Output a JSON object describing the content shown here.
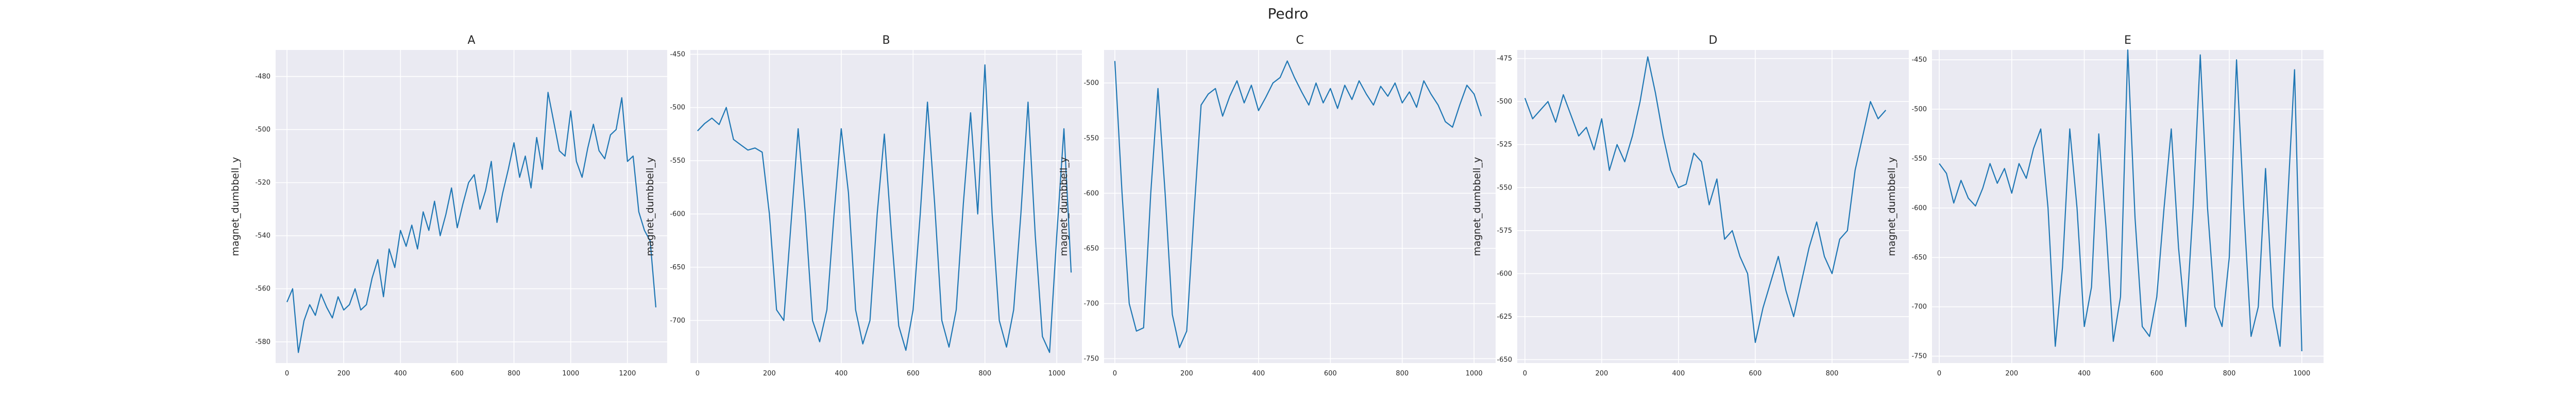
{
  "figure": {
    "title": "Pedro"
  },
  "style": {
    "axes_bg": "#eaeaf2",
    "grid_color": "#ffffff",
    "line_color": "#1f77b4"
  },
  "chart_data": [
    {
      "type": "line",
      "title": "A",
      "xlabel": "",
      "ylabel": "magnet_dumbbell_y",
      "xlim": [
        -40,
        1340
      ],
      "ylim": [
        -588,
        -470
      ],
      "xticks": [
        0,
        200,
        400,
        600,
        800,
        1000,
        1200
      ],
      "yticks": [
        -480,
        -500,
        -520,
        -540,
        -560,
        -580
      ],
      "grid": true,
      "x": [
        0,
        20,
        40,
        60,
        80,
        100,
        120,
        140,
        160,
        180,
        200,
        220,
        240,
        260,
        280,
        300,
        320,
        340,
        360,
        380,
        400,
        420,
        440,
        460,
        480,
        500,
        520,
        540,
        560,
        580,
        600,
        620,
        640,
        660,
        680,
        700,
        720,
        740,
        760,
        780,
        800,
        820,
        840,
        860,
        880,
        900,
        920,
        940,
        960,
        980,
        1000,
        1020,
        1040,
        1060,
        1080,
        1100,
        1120,
        1140,
        1160,
        1180,
        1200,
        1220,
        1240,
        1260,
        1280,
        1300
      ],
      "y": [
        -565,
        -560,
        -584,
        -572,
        -566,
        -570,
        -562,
        -567,
        -571,
        -563,
        -568,
        -566,
        -560,
        -568,
        -566,
        -556,
        -549,
        -563,
        -545,
        -552,
        -538,
        -544,
        -536,
        -545,
        -531,
        -538,
        -527,
        -540,
        -532,
        -522,
        -537,
        -528,
        -520,
        -517,
        -530,
        -523,
        -512,
        -535,
        -524,
        -515,
        -505,
        -518,
        -510,
        -522,
        -503,
        -515,
        -486,
        -497,
        -508,
        -510,
        -493,
        -512,
        -518,
        -507,
        -498,
        -508,
        -511,
        -502,
        -500,
        -488,
        -512,
        -510,
        -531,
        -538,
        -542,
        -567
      ]
    },
    {
      "type": "line",
      "title": "B",
      "xlabel": "",
      "ylabel": "magnet_dumbbell_y",
      "xlim": [
        -20,
        1070
      ],
      "ylim": [
        -740,
        -446
      ],
      "xticks": [
        0,
        200,
        400,
        600,
        800,
        1000
      ],
      "yticks": [
        -450,
        -500,
        -550,
        -600,
        -650,
        -700
      ],
      "grid": true,
      "x": [
        0,
        20,
        40,
        60,
        80,
        100,
        120,
        140,
        160,
        180,
        200,
        220,
        240,
        260,
        280,
        300,
        320,
        340,
        360,
        380,
        400,
        420,
        440,
        460,
        480,
        500,
        520,
        540,
        560,
        580,
        600,
        620,
        640,
        660,
        680,
        700,
        720,
        740,
        760,
        780,
        800,
        820,
        840,
        860,
        880,
        900,
        920,
        940,
        960,
        980,
        1000,
        1020,
        1040
      ],
      "y": [
        -522,
        -515,
        -510,
        -516,
        -500,
        -530,
        -535,
        -540,
        -538,
        -542,
        -600,
        -690,
        -700,
        -610,
        -520,
        -600,
        -700,
        -720,
        -690,
        -600,
        -520,
        -580,
        -690,
        -722,
        -700,
        -600,
        -525,
        -620,
        -705,
        -728,
        -690,
        -600,
        -495,
        -590,
        -700,
        -725,
        -690,
        -590,
        -505,
        -600,
        -460,
        -600,
        -700,
        -725,
        -690,
        -600,
        -495,
        -620,
        -715,
        -730,
        -620,
        -520,
        -655
      ]
    },
    {
      "type": "line",
      "title": "C",
      "xlabel": "",
      "ylabel": "magnet_dumbbell_y",
      "xlim": [
        -30,
        1060
      ],
      "ylim": [
        -754,
        -470
      ],
      "xticks": [
        0,
        200,
        400,
        600,
        800,
        1000
      ],
      "yticks": [
        -500,
        -550,
        -600,
        -650,
        -700,
        -750
      ],
      "grid": true,
      "x": [
        0,
        20,
        40,
        60,
        80,
        100,
        120,
        140,
        160,
        180,
        200,
        220,
        240,
        260,
        280,
        300,
        320,
        340,
        360,
        380,
        400,
        420,
        440,
        460,
        480,
        500,
        520,
        540,
        560,
        580,
        600,
        620,
        640,
        660,
        680,
        700,
        720,
        740,
        760,
        780,
        800,
        820,
        840,
        860,
        880,
        900,
        920,
        940,
        960,
        980,
        1000,
        1020
      ],
      "y": [
        -480,
        -600,
        -700,
        -725,
        -722,
        -600,
        -505,
        -600,
        -710,
        -740,
        -725,
        -620,
        -520,
        -510,
        -505,
        -530,
        -512,
        -498,
        -518,
        -502,
        -525,
        -513,
        -500,
        -495,
        -480,
        -495,
        -508,
        -520,
        -500,
        -518,
        -505,
        -523,
        -502,
        -515,
        -498,
        -510,
        -520,
        -503,
        -512,
        -500,
        -518,
        -508,
        -522,
        -498,
        -510,
        -520,
        -535,
        -540,
        -520,
        -502,
        -510,
        -530
      ]
    },
    {
      "type": "line",
      "title": "D",
      "xlabel": "",
      "ylabel": "magnet_dumbbell_y",
      "xlim": [
        -20,
        1000
      ],
      "ylim": [
        -652,
        -470
      ],
      "xticks": [
        0,
        200,
        400,
        600,
        800
      ],
      "yticks": [
        -475,
        -500,
        -525,
        -550,
        -575,
        -600,
        -625,
        -650
      ],
      "grid": true,
      "x": [
        0,
        20,
        40,
        60,
        80,
        100,
        120,
        140,
        160,
        180,
        200,
        220,
        240,
        260,
        280,
        300,
        320,
        340,
        360,
        380,
        400,
        420,
        440,
        460,
        480,
        500,
        520,
        540,
        560,
        580,
        600,
        620,
        640,
        660,
        680,
        700,
        720,
        740,
        760,
        780,
        800,
        820,
        840,
        860,
        880,
        900,
        920,
        940
      ],
      "y": [
        -498,
        -510,
        -505,
        -500,
        -512,
        -496,
        -508,
        -520,
        -515,
        -528,
        -510,
        -540,
        -525,
        -535,
        -520,
        -500,
        -474,
        -495,
        -520,
        -540,
        -550,
        -548,
        -530,
        -535,
        -560,
        -545,
        -580,
        -575,
        -590,
        -600,
        -640,
        -620,
        -605,
        -590,
        -610,
        -625,
        -605,
        -585,
        -570,
        -590,
        -600,
        -580,
        -575,
        -540,
        -520,
        -500,
        -510,
        -505
      ]
    },
    {
      "type": "line",
      "title": "E",
      "xlabel": "",
      "ylabel": "magnet_dumbbell_y",
      "xlim": [
        -20,
        1060
      ],
      "ylim": [
        -757,
        -440
      ],
      "xticks": [
        0,
        200,
        400,
        600,
        800,
        1000
      ],
      "yticks": [
        -450,
        -500,
        -550,
        -600,
        -650,
        -700,
        -750
      ],
      "grid": true,
      "x": [
        0,
        20,
        40,
        60,
        80,
        100,
        120,
        140,
        160,
        180,
        200,
        220,
        240,
        260,
        280,
        300,
        320,
        340,
        360,
        380,
        400,
        420,
        440,
        460,
        480,
        500,
        520,
        540,
        560,
        580,
        600,
        620,
        640,
        660,
        680,
        700,
        720,
        740,
        760,
        780,
        800,
        820,
        840,
        860,
        880,
        900,
        920,
        940,
        960,
        980,
        1000
      ],
      "y": [
        -555,
        -565,
        -595,
        -572,
        -590,
        -598,
        -580,
        -555,
        -575,
        -560,
        -585,
        -555,
        -570,
        -540,
        -520,
        -600,
        -740,
        -660,
        -520,
        -600,
        -720,
        -680,
        -525,
        -620,
        -735,
        -690,
        -440,
        -610,
        -720,
        -730,
        -690,
        -600,
        -520,
        -640,
        -720,
        -600,
        -445,
        -600,
        -700,
        -720,
        -650,
        -450,
        -600,
        -730,
        -700,
        -560,
        -700,
        -740,
        -600,
        -460,
        -745
      ]
    }
  ]
}
